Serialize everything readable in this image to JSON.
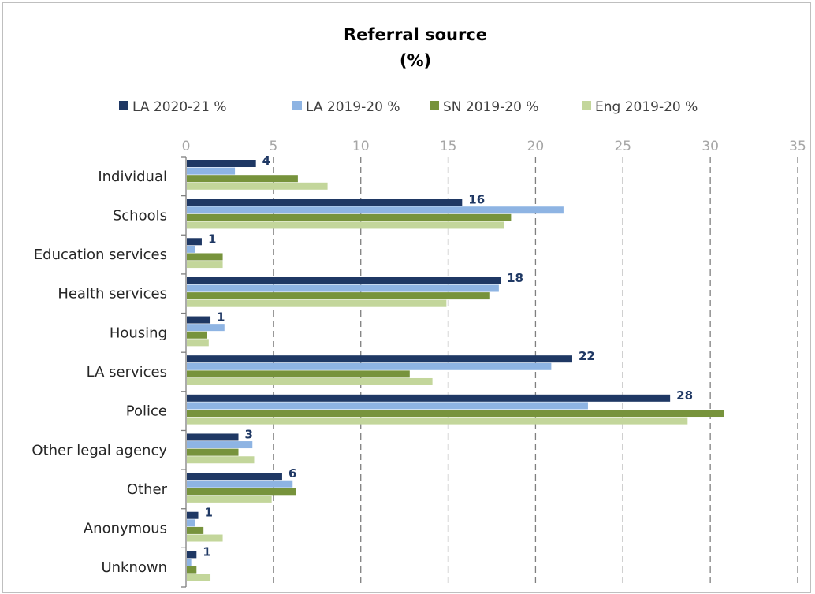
{
  "chart_data": {
    "type": "bar",
    "orientation": "horizontal",
    "title": "Referral source",
    "subtitle": "(%)",
    "categories": [
      "Individual",
      "Schools",
      "Education services",
      "Health services",
      "Housing",
      "LA services",
      "Police",
      "Other legal agency",
      "Other",
      "Anonymous",
      "Unknown"
    ],
    "series": [
      {
        "name": "LA 2020-21 %",
        "color": "#1f3864",
        "values": [
          4,
          16,
          1,
          18,
          1,
          22,
          28,
          3,
          6,
          1,
          1
        ],
        "plot_values": [
          4.0,
          15.8,
          0.9,
          18.0,
          1.4,
          22.1,
          27.7,
          3.0,
          5.5,
          0.7,
          0.6
        ]
      },
      {
        "name": "LA 2019-20 %",
        "color": "#8eb4e3",
        "values": [
          2.8,
          21.6,
          0.5,
          17.9,
          2.2,
          20.9,
          23.0,
          3.8,
          6.1,
          0.5,
          0.3
        ]
      },
      {
        "name": "SN 2019-20 %",
        "color": "#77933c",
        "values": [
          6.4,
          18.6,
          2.1,
          17.4,
          1.2,
          12.8,
          30.8,
          3.0,
          6.3,
          1.0,
          0.6
        ]
      },
      {
        "name": "Eng 2019-20 %",
        "color": "#c3d69b",
        "values": [
          8.1,
          18.2,
          2.1,
          14.9,
          1.3,
          14.1,
          28.7,
          3.9,
          4.9,
          2.1,
          1.4
        ]
      }
    ],
    "data_labels": [
      "4",
      "16",
      "1",
      "18",
      "1",
      "22",
      "28",
      "3",
      "6",
      "1",
      "1"
    ],
    "xlim": [
      0,
      35
    ],
    "x_ticks": [
      0,
      5,
      10,
      15,
      20,
      25,
      30,
      35
    ],
    "x_axis_position": "top",
    "grid": true,
    "legend_position": "top"
  }
}
